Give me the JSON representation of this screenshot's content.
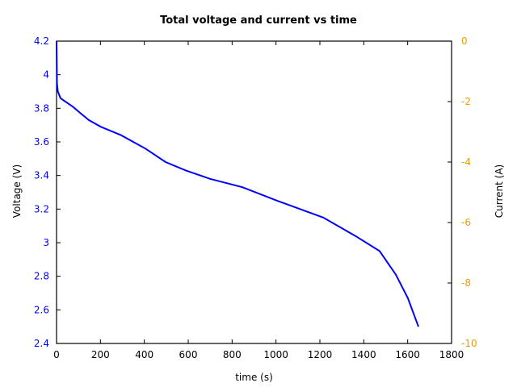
{
  "chart_data": {
    "type": "line",
    "title": "Total voltage and current vs time",
    "xlabel": "time (s)",
    "ylabel": "Voltage (V)",
    "y2label": "Current (A)",
    "xlim": [
      0,
      1800
    ],
    "ylim": [
      2.4,
      4.2
    ],
    "y2lim": [
      -10,
      0
    ],
    "x_ticks": [
      "0",
      "200",
      "400",
      "600",
      "800",
      "1000",
      "1200",
      "1400",
      "1600",
      "1800"
    ],
    "y_ticks": [
      "4.2",
      "4",
      "3.8",
      "3.6",
      "3.4",
      "3.2",
      "3",
      "2.8",
      "2.6",
      "2.4"
    ],
    "y2_ticks": [
      "0",
      "-2",
      "-4",
      "-6",
      "-8",
      "-10"
    ],
    "grid": false,
    "legend": null,
    "colors": {
      "voltage": "#0000ff",
      "left_axis_ticks": "#0000ff",
      "right_axis_ticks": "#e69f00"
    },
    "series": [
      {
        "name": "Voltage",
        "axis": "left",
        "x": [
          0,
          2,
          6,
          18,
          40,
          74,
          110,
          147,
          202,
          294,
          405,
          497,
          589,
          699,
          847,
          1005,
          1215,
          1362,
          1472,
          1546,
          1601,
          1649
        ],
        "values": [
          4.2,
          3.95,
          3.9,
          3.86,
          3.84,
          3.81,
          3.77,
          3.73,
          3.69,
          3.64,
          3.56,
          3.48,
          3.43,
          3.38,
          3.33,
          3.25,
          3.15,
          3.04,
          2.95,
          2.81,
          2.67,
          2.5
        ]
      }
    ]
  }
}
